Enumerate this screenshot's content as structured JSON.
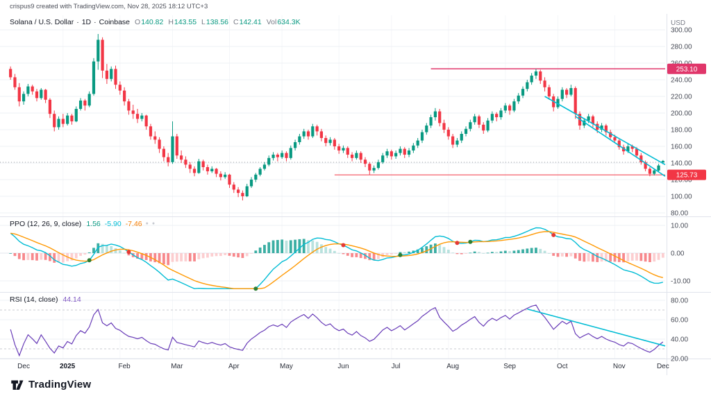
{
  "watermark": "crispus9 created with TradingView.com, Nov 28, 2025 18:12 UTC+3",
  "header": {
    "symbol_title": "Solana / U.S. Dollar",
    "sep": "·",
    "interval": "1D",
    "exchange": "Coinbase",
    "ohlc": {
      "o_label": "O",
      "o": "140.82",
      "h_label": "H",
      "h": "143.55",
      "l_label": "L",
      "l": "138.56",
      "c_label": "C",
      "c": "142.41",
      "vol_label": "Vol",
      "vol": "634.3K"
    }
  },
  "ppo_legend": {
    "title": "PPO (12, 26, 9, close)",
    "hist": "1.56",
    "ppo": "-5.90",
    "signal": "-7.46",
    "marker1": "●",
    "marker2": "●"
  },
  "rsi_legend": {
    "title": "RSI (14, close)",
    "value": "44.14"
  },
  "axis": {
    "currency": "USD",
    "price_ticks": [
      "300.00",
      "280.00",
      "260.00",
      "240.00",
      "220.00",
      "200.00",
      "180.00",
      "160.00",
      "140.00",
      "120.00",
      "100.00",
      "80.00"
    ],
    "ppo_ticks": [
      "10.00",
      "0.00",
      "-10.00"
    ],
    "rsi_ticks": [
      "80.00",
      "60.00",
      "40.00",
      "20.00"
    ],
    "month_start_i": [
      12,
      25,
      37,
      50,
      62,
      75,
      87,
      100,
      113,
      125,
      138
    ],
    "time_labels": [
      {
        "label": "Dec",
        "i": 3
      },
      {
        "label": "2025",
        "i": 13
      },
      {
        "label": "Feb",
        "i": 26
      },
      {
        "label": "Mar",
        "i": 38
      },
      {
        "label": "Apr",
        "i": 51
      },
      {
        "label": "May",
        "i": 63
      },
      {
        "label": "Jun",
        "i": 76
      },
      {
        "label": "Jul",
        "i": 88
      },
      {
        "label": "Aug",
        "i": 101
      },
      {
        "label": "Sep",
        "i": 114
      },
      {
        "label": "Oct",
        "i": 126
      },
      {
        "label": "Nov",
        "i": 139
      },
      {
        "label": "Dec",
        "i": 149
      }
    ]
  },
  "price_labels": [
    {
      "text": "253.10",
      "price": 253.1,
      "bg": "#e0366a"
    },
    {
      "text": "125.73",
      "price": 125.73,
      "bg": "#f23645"
    }
  ],
  "logo_text": "TradingView",
  "chart_data": [
    {
      "type": "candlestick",
      "title": "Solana / U.S. Dollar",
      "interval": "1D",
      "exchange": "Coinbase",
      "currency": "USD",
      "ylim": [
        80,
        300
      ],
      "x_axis": "Dec 2024 - Dec 2025",
      "last_bar": {
        "open": 140.82,
        "high": 143.55,
        "low": 138.56,
        "close": 142.41,
        "volume": "634.3K"
      },
      "up_color": "#089981",
      "down_color": "#f23645",
      "levels": [
        {
          "price": 253.1,
          "color": "#e0366a",
          "from_i": 96,
          "to_i": 150,
          "width": 1.5,
          "style": "solid"
        },
        {
          "price": 125.73,
          "color": "#f23645",
          "from_i": 74,
          "to_i": 150,
          "width": 1,
          "style": "solid"
        },
        {
          "price": 140.8,
          "color": "#9598a1",
          "from_i": 0,
          "to_i": 150,
          "width": 1,
          "style": "dotted"
        }
      ],
      "trendlines": [
        {
          "from": {
            "i": 122,
            "price": 220
          },
          "to": {
            "i": 150,
            "price": 138
          },
          "color": "#00bcd4"
        },
        {
          "from": {
            "i": 129,
            "price": 196
          },
          "to": {
            "i": 150,
            "price": 124
          },
          "color": "#00bcd4"
        }
      ],
      "candles": [
        [
          253,
          256,
          240,
          243
        ],
        [
          243,
          247,
          228,
          231
        ],
        [
          231,
          236,
          208,
          214
        ],
        [
          214,
          226,
          210,
          223
        ],
        [
          223,
          235,
          220,
          232
        ],
        [
          232,
          234,
          222,
          226
        ],
        [
          226,
          229,
          214,
          218
        ],
        [
          218,
          230,
          216,
          228
        ],
        [
          228,
          229,
          212,
          216
        ],
        [
          216,
          218,
          194,
          199
        ],
        [
          199,
          203,
          178,
          183
        ],
        [
          183,
          196,
          180,
          193
        ],
        [
          193,
          199,
          183,
          187
        ],
        [
          187,
          200,
          185,
          197
        ],
        [
          197,
          199,
          186,
          190
        ],
        [
          190,
          208,
          189,
          205
        ],
        [
          205,
          218,
          203,
          215
        ],
        [
          215,
          217,
          203,
          209
        ],
        [
          209,
          226,
          207,
          223
        ],
        [
          223,
          266,
          221,
          262
        ],
        [
          262,
          295,
          252,
          288
        ],
        [
          288,
          291,
          242,
          251
        ],
        [
          251,
          259,
          235,
          241
        ],
        [
          241,
          256,
          238,
          253
        ],
        [
          253,
          257,
          229,
          234
        ],
        [
          234,
          238,
          222,
          227
        ],
        [
          227,
          231,
          209,
          214
        ],
        [
          214,
          217,
          198,
          203
        ],
        [
          203,
          210,
          193,
          199
        ],
        [
          199,
          205,
          188,
          193
        ],
        [
          193,
          200,
          190,
          197
        ],
        [
          197,
          198,
          180,
          184
        ],
        [
          184,
          187,
          168,
          172
        ],
        [
          172,
          178,
          163,
          168
        ],
        [
          168,
          171,
          152,
          157
        ],
        [
          157,
          160,
          142,
          147
        ],
        [
          147,
          152,
          136,
          141
        ],
        [
          141,
          190,
          139,
          172
        ],
        [
          172,
          175,
          145,
          149
        ],
        [
          149,
          155,
          140,
          144
        ],
        [
          144,
          148,
          134,
          138
        ],
        [
          138,
          141,
          128,
          133
        ],
        [
          133,
          136,
          124,
          128
        ],
        [
          128,
          145,
          127,
          142
        ],
        [
          142,
          144,
          131,
          135
        ],
        [
          135,
          138,
          126,
          130
        ],
        [
          130,
          136,
          128,
          133
        ],
        [
          133,
          134,
          123,
          127
        ],
        [
          127,
          130,
          119,
          123
        ],
        [
          123,
          129,
          121,
          126
        ],
        [
          126,
          127,
          110,
          114
        ],
        [
          114,
          117,
          104,
          108
        ],
        [
          108,
          111,
          99,
          104
        ],
        [
          104,
          107,
          95,
          100
        ],
        [
          100,
          115,
          99,
          112
        ],
        [
          112,
          123,
          110,
          120
        ],
        [
          120,
          128,
          117,
          126
        ],
        [
          126,
          135,
          124,
          133
        ],
        [
          133,
          141,
          131,
          138
        ],
        [
          138,
          149,
          136,
          146
        ],
        [
          146,
          153,
          143,
          150
        ],
        [
          150,
          152,
          142,
          147
        ],
        [
          147,
          155,
          145,
          152
        ],
        [
          152,
          154,
          142,
          146
        ],
        [
          146,
          161,
          144,
          158
        ],
        [
          158,
          168,
          155,
          165
        ],
        [
          165,
          175,
          162,
          172
        ],
        [
          172,
          181,
          169,
          178
        ],
        [
          178,
          180,
          168,
          172
        ],
        [
          172,
          187,
          170,
          184
        ],
        [
          184,
          186,
          173,
          178
        ],
        [
          178,
          181,
          166,
          170
        ],
        [
          170,
          173,
          160,
          164
        ],
        [
          164,
          171,
          161,
          168
        ],
        [
          168,
          170,
          156,
          160
        ],
        [
          160,
          163,
          151,
          155
        ],
        [
          155,
          161,
          152,
          158
        ],
        [
          158,
          160,
          146,
          150
        ],
        [
          150,
          153,
          142,
          146
        ],
        [
          146,
          155,
          144,
          152
        ],
        [
          152,
          154,
          140,
          144
        ],
        [
          144,
          147,
          135,
          139
        ],
        [
          139,
          141,
          126,
          131
        ],
        [
          131,
          137,
          128,
          134
        ],
        [
          134,
          144,
          132,
          141
        ],
        [
          141,
          152,
          139,
          149
        ],
        [
          149,
          157,
          146,
          154
        ],
        [
          154,
          156,
          144,
          148
        ],
        [
          148,
          155,
          145,
          152
        ],
        [
          152,
          160,
          149,
          157
        ],
        [
          157,
          159,
          146,
          150
        ],
        [
          150,
          158,
          147,
          155
        ],
        [
          155,
          164,
          152,
          161
        ],
        [
          161,
          170,
          158,
          167
        ],
        [
          167,
          180,
          164,
          177
        ],
        [
          177,
          188,
          174,
          185
        ],
        [
          185,
          198,
          182,
          195
        ],
        [
          195,
          206,
          191,
          202
        ],
        [
          202,
          205,
          184,
          188
        ],
        [
          188,
          192,
          176,
          180
        ],
        [
          180,
          183,
          168,
          172
        ],
        [
          172,
          175,
          158,
          162
        ],
        [
          162,
          170,
          159,
          167
        ],
        [
          167,
          178,
          164,
          175
        ],
        [
          175,
          184,
          172,
          181
        ],
        [
          181,
          192,
          178,
          189
        ],
        [
          189,
          199,
          186,
          196
        ],
        [
          196,
          198,
          182,
          186
        ],
        [
          186,
          189,
          175,
          179
        ],
        [
          179,
          194,
          177,
          191
        ],
        [
          191,
          202,
          188,
          199
        ],
        [
          199,
          201,
          190,
          195
        ],
        [
          195,
          206,
          192,
          203
        ],
        [
          203,
          212,
          200,
          209
        ],
        [
          209,
          211,
          198,
          203
        ],
        [
          203,
          217,
          201,
          214
        ],
        [
          214,
          224,
          211,
          221
        ],
        [
          221,
          232,
          218,
          229
        ],
        [
          229,
          240,
          226,
          237
        ],
        [
          237,
          248,
          234,
          245
        ],
        [
          245,
          253,
          241,
          250
        ],
        [
          250,
          252,
          235,
          239
        ],
        [
          239,
          243,
          226,
          231
        ],
        [
          231,
          234,
          216,
          220
        ],
        [
          220,
          223,
          202,
          207
        ],
        [
          207,
          220,
          205,
          217
        ],
        [
          217,
          231,
          214,
          228
        ],
        [
          228,
          230,
          218,
          222
        ],
        [
          222,
          234,
          220,
          230
        ],
        [
          230,
          232,
          193,
          199
        ],
        [
          199,
          202,
          180,
          185
        ],
        [
          185,
          194,
          182,
          191
        ],
        [
          191,
          199,
          188,
          196
        ],
        [
          196,
          198,
          183,
          187
        ],
        [
          187,
          190,
          176,
          180
        ],
        [
          180,
          188,
          177,
          185
        ],
        [
          185,
          187,
          173,
          177
        ],
        [
          177,
          180,
          168,
          171
        ],
        [
          171,
          174,
          164,
          167
        ],
        [
          167,
          169,
          156,
          159
        ],
        [
          159,
          162,
          150,
          154
        ],
        [
          154,
          163,
          152,
          160
        ],
        [
          160,
          162,
          153,
          157
        ],
        [
          157,
          159,
          146,
          149
        ],
        [
          149,
          152,
          138,
          141
        ],
        [
          141,
          143,
          130,
          133
        ],
        [
          133,
          135,
          124,
          127
        ],
        [
          127,
          133,
          125,
          131
        ],
        [
          131,
          139,
          129,
          137
        ],
        [
          140.82,
          143.55,
          138.56,
          142.41
        ]
      ]
    },
    {
      "type": "line",
      "name": "PPO",
      "params": [
        12,
        26,
        9,
        "close"
      ],
      "source": "derived from candles closes (EMA12, EMA26, signal EMA9)",
      "shown_values": {
        "histogram": 1.56,
        "ppo": -5.9,
        "signal": -7.46
      },
      "ylim": [
        -13,
        13
      ],
      "plots": [
        "histogram",
        "ppo",
        "signal",
        "cross_markers"
      ],
      "colors": {
        "ppo": "#00bcd4",
        "signal": "#ff9800",
        "hist_up": "#26a69a",
        "hist_up_faded": "#b2dfdb",
        "hist_down": "#f77c80",
        "hist_down_faded": "#fcc9cc",
        "cross_up": "#2e7d32",
        "cross_down": "#e53935"
      }
    },
    {
      "type": "line",
      "name": "RSI",
      "params": [
        14,
        "close"
      ],
      "shown_value": 44.14,
      "ylim": [
        15,
        90
      ],
      "bands": [
        70,
        30
      ],
      "color": "#673ab7",
      "trendline": {
        "from": {
          "i": 118,
          "v": 71
        },
        "to": {
          "i": 150,
          "v": 33
        },
        "color": "#00bcd4"
      }
    }
  ]
}
